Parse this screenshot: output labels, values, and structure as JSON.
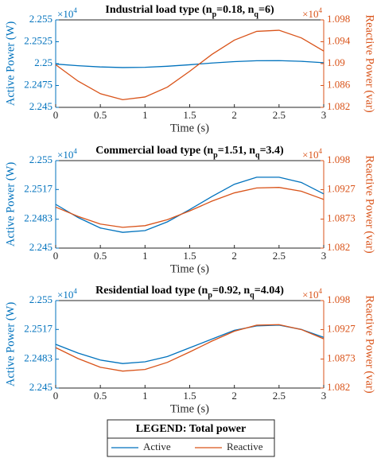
{
  "chart_data": [
    {
      "type": "line",
      "title": [
        "Industrial load type (n",
        "p",
        "=0.18, n",
        "q",
        "=6)"
      ],
      "xlabel": "Time (s)",
      "ylabel": "Active Power (W)",
      "y2label": "Reactive Power (var)",
      "y_multiplier": [
        "×10",
        "4"
      ],
      "y2_multiplier": [
        "×10",
        "4"
      ],
      "x": [
        0,
        0.25,
        0.5,
        0.75,
        1,
        1.25,
        1.5,
        1.75,
        2,
        2.25,
        2.5,
        2.75,
        3
      ],
      "xlim": [
        0,
        3
      ],
      "xticks": [
        0,
        0.5,
        1,
        1.5,
        2,
        2.5,
        3
      ],
      "ylim": [
        2.245,
        2.255
      ],
      "yticks": [
        2.245,
        2.2475,
        2.25,
        2.2525,
        2.255
      ],
      "y2lim": [
        1.082,
        1.098
      ],
      "y2ticks": [
        1.082,
        1.086,
        1.09,
        1.094,
        1.098
      ],
      "series": [
        {
          "name": "Active",
          "color": "#0072bd",
          "values": [
            2.24995,
            2.24976,
            2.24962,
            2.24955,
            2.24958,
            2.2497,
            2.24987,
            2.25007,
            2.25023,
            2.25033,
            2.25034,
            2.25026,
            2.2501
          ]
        },
        {
          "name": "Reactive",
          "color": "#d95319",
          "axis": "y2",
          "values": [
            1.0898,
            1.0868,
            1.0845,
            1.0834,
            1.0839,
            1.0857,
            1.0886,
            1.0917,
            1.0943,
            1.0959,
            1.0961,
            1.0947,
            1.0923
          ]
        }
      ]
    },
    {
      "type": "line",
      "title": [
        "Commercial load type (n",
        "p",
        "=1.51, n",
        "q",
        "=3.4)"
      ],
      "xlabel": "Time (s)",
      "ylabel": "Active Power (W)",
      "y2label": "Reactive Power (var)",
      "y_multiplier": [
        "×10",
        "4"
      ],
      "y2_multiplier": [
        "×10",
        "4"
      ],
      "x": [
        0,
        0.25,
        0.5,
        0.75,
        1,
        1.25,
        1.5,
        1.75,
        2,
        2.25,
        2.5,
        2.75,
        3
      ],
      "xlim": [
        0,
        3
      ],
      "xticks": [
        0,
        0.5,
        1,
        1.5,
        2,
        2.5,
        3
      ],
      "ylim": [
        2.245,
        2.255
      ],
      "yticks": [
        2.245,
        2.2483,
        2.2517,
        2.255
      ],
      "y2lim": [
        1.082,
        1.098
      ],
      "y2ticks": [
        1.082,
        1.0873,
        1.0927,
        1.098
      ],
      "series": [
        {
          "color": "#0072bd",
          "values": [
            2.25,
            2.2485,
            2.2473,
            2.2468,
            2.247,
            2.248,
            2.2494,
            2.2509,
            2.2523,
            2.2531,
            2.2531,
            2.2525,
            2.2512
          ]
        },
        {
          "color": "#d95319",
          "axis": "y2",
          "values": [
            1.0895,
            1.0878,
            1.0864,
            1.0858,
            1.0861,
            1.0872,
            1.0888,
            1.0906,
            1.0921,
            1.093,
            1.0931,
            1.0924,
            1.0909
          ]
        }
      ]
    },
    {
      "type": "line",
      "title": [
        "Residential load type (n",
        "p",
        "=0.92, n",
        "q",
        "=4.04)"
      ],
      "xlabel": "Time (s)",
      "ylabel": "Active Power (W)",
      "y2label": "Reactive Power (var)",
      "y_multiplier": [
        "×10",
        "4"
      ],
      "y2_multiplier": [
        "×10",
        "4"
      ],
      "x": [
        0,
        0.25,
        0.5,
        0.75,
        1,
        1.25,
        1.5,
        1.75,
        2,
        2.25,
        2.5,
        2.75,
        3
      ],
      "xlim": [
        0,
        3
      ],
      "xticks": [
        0,
        0.5,
        1,
        1.5,
        2,
        2.5,
        3
      ],
      "ylim": [
        2.245,
        2.255
      ],
      "yticks": [
        2.245,
        2.2483,
        2.2517,
        2.255
      ],
      "y2lim": [
        1.082,
        1.098
      ],
      "y2ticks": [
        1.082,
        1.0873,
        1.0927,
        1.098
      ],
      "series": [
        {
          "color": "#0072bd",
          "values": [
            2.25,
            2.249,
            2.2482,
            2.2478,
            2.248,
            2.2486,
            2.2496,
            2.2506,
            2.2516,
            2.2521,
            2.2522,
            2.2517,
            2.2508
          ]
        },
        {
          "color": "#d95319",
          "axis": "y2",
          "values": [
            1.0894,
            1.0874,
            1.0858,
            1.0851,
            1.0854,
            1.0867,
            1.0886,
            1.0906,
            1.0924,
            1.0935,
            1.0936,
            1.0927,
            1.091
          ]
        }
      ]
    }
  ],
  "legend": {
    "title": "LEGEND: Total power"
  }
}
